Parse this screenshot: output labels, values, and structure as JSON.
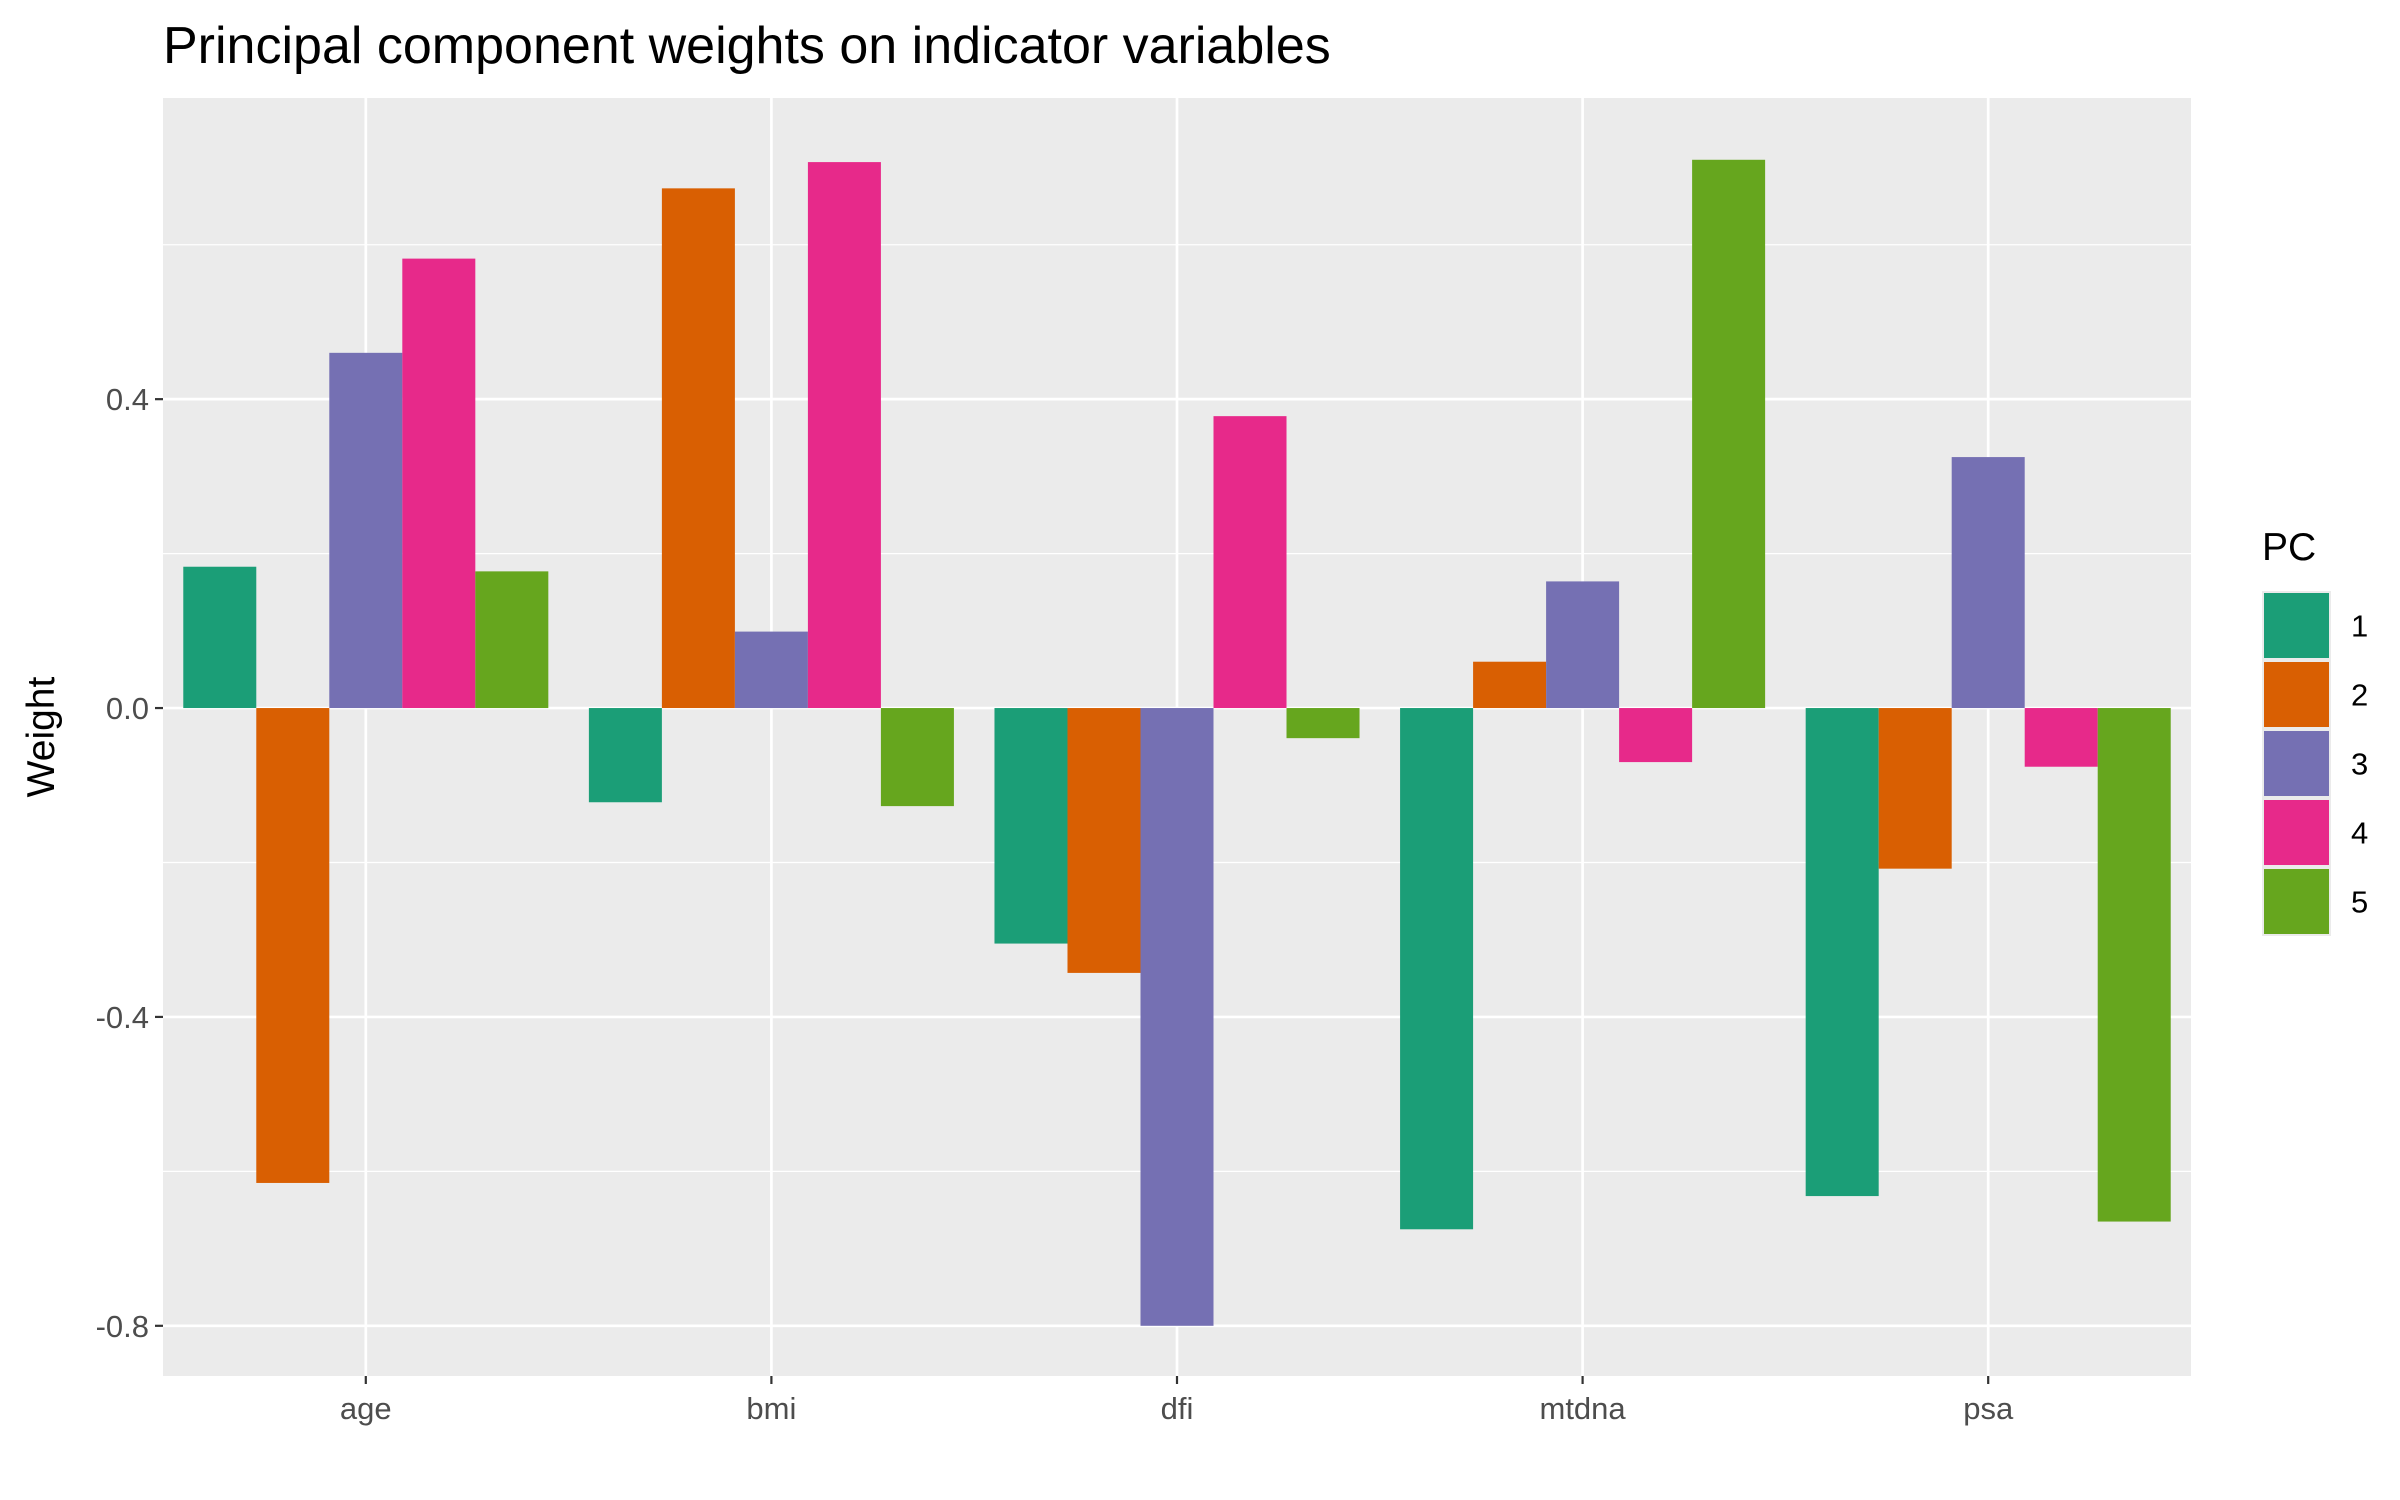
{
  "chart_data": {
    "type": "bar",
    "title": "Principal component weights on indicator variables",
    "xlabel": "",
    "ylabel": "Weight",
    "ylim": [
      -0.865,
      0.79
    ],
    "yticks": [
      0.4,
      0.0,
      -0.4,
      -0.8
    ],
    "ytick_labels": [
      "0.4",
      "0.0",
      "-0.4",
      "-0.8"
    ],
    "categories": [
      "age",
      "bmi",
      "dfi",
      "mtdna",
      "psa"
    ],
    "grid": true,
    "legend_position": "right",
    "legend_title": "PC",
    "series": [
      {
        "name": "1",
        "color": "#1b9e77",
        "values": [
          0.183,
          -0.122,
          -0.305,
          -0.675,
          -0.632
        ]
      },
      {
        "name": "2",
        "color": "#d95f02",
        "values": [
          -0.615,
          0.673,
          -0.343,
          0.06,
          -0.208
        ]
      },
      {
        "name": "3",
        "color": "#7570b3",
        "values": [
          0.46,
          0.099,
          -0.8,
          0.164,
          0.325
        ]
      },
      {
        "name": "4",
        "color": "#e7298a",
        "values": [
          0.582,
          0.707,
          0.378,
          -0.07,
          -0.076
        ]
      },
      {
        "name": "5",
        "color": "#66a61e",
        "values": [
          0.177,
          -0.127,
          -0.039,
          0.71,
          -0.665
        ]
      }
    ]
  }
}
